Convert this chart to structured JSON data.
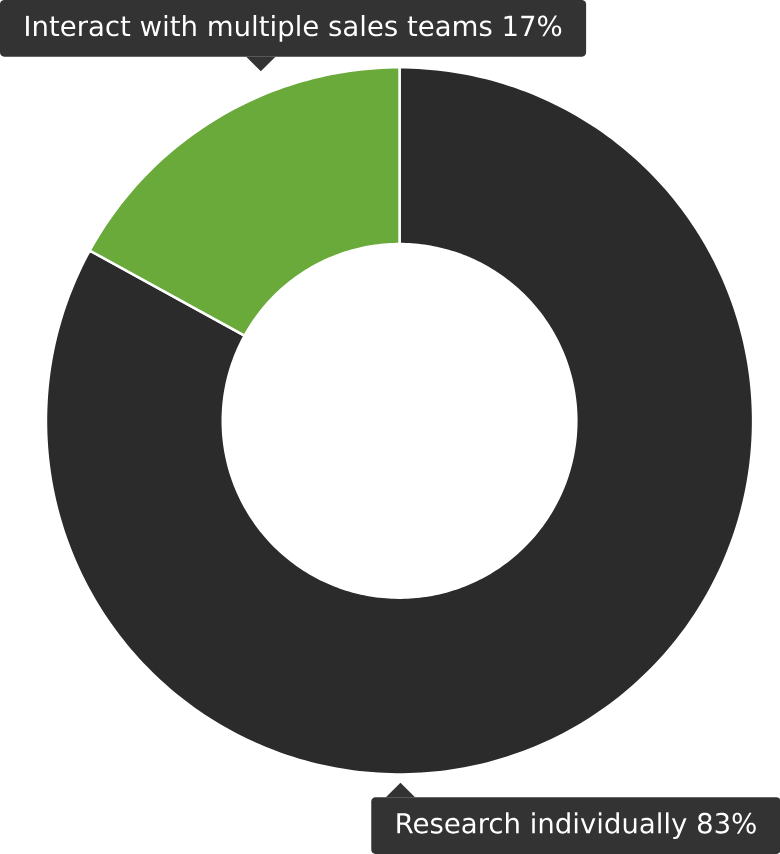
{
  "chart_data": {
    "type": "donut",
    "categories": [
      "Research individually",
      "Interact with multiple sales teams"
    ],
    "values": [
      83,
      17
    ],
    "colors": [
      "#2b2b2b",
      "#6aaa3a"
    ],
    "value_labels": [
      "83%",
      "17%"
    ]
  }
}
